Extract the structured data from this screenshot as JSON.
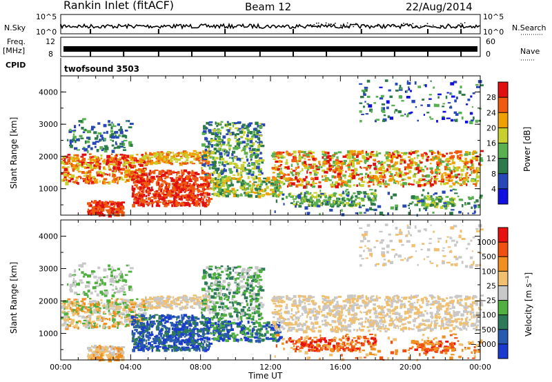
{
  "header": {
    "station": "Rankin Inlet (fitACF)",
    "beam": "Beam 12",
    "date": "22/Aug/2014"
  },
  "top_panels": {
    "nsky_label": "N.Sky",
    "nsky_tick_hi": "10^5",
    "nsky_tick_lo": "10^0",
    "nsearch_label": "N.Search",
    "nsearch_tick_hi": "10^5",
    "nsearch_tick_lo": "10^0",
    "freq_label": "Freq.",
    "freq_unit": "[MHz]",
    "freq_tick_hi": "12",
    "freq_tick_lo": "8",
    "nave_label": "Nave",
    "nave_tick_hi": "60",
    "nave_tick_lo": "0",
    "cpid_label": "CPID",
    "cpid_value": "twofsound 3503"
  },
  "chart_data": [
    {
      "type": "heatmap",
      "title": "Power",
      "ylabel": "Slant Range [km]",
      "xlabel": "Time UT",
      "xlim": [
        0,
        24
      ],
      "ylim": [
        180,
        4500
      ],
      "x_ticks": [
        "00:00",
        "04:00",
        "08:00",
        "12:00",
        "16:00",
        "20:00",
        "00:00"
      ],
      "y_ticks": [
        1000,
        2000,
        3000,
        4000
      ],
      "colorbar": {
        "label": "Power [dB]",
        "ticks": [
          4,
          8,
          12,
          16,
          20,
          24,
          28
        ],
        "colors": [
          "#1010e0",
          "#2848b8",
          "#2c7a4a",
          "#58b050",
          "#c8d030",
          "#f0a000",
          "#f05a10",
          "#e01010"
        ]
      }
    },
    {
      "type": "heatmap",
      "title": "Velocity",
      "ylabel": "Slant Range [km]",
      "xlabel": "Time UT",
      "xlim": [
        0,
        24
      ],
      "ylim": [
        180,
        4500
      ],
      "x_ticks": [
        "00:00",
        "04:00",
        "08:00",
        "12:00",
        "16:00",
        "20:00",
        "00:00"
      ],
      "y_ticks": [
        1000,
        2000,
        3000,
        4000
      ],
      "colorbar": {
        "label": "Velocity [m s⁻¹]",
        "ticks": [
          "1000",
          "500",
          "100",
          "25",
          "−25",
          "−100",
          "−500",
          "−1000"
        ],
        "colors": [
          "#1a3ad0",
          "#2a5ab0",
          "#2c7a5a",
          "#50b040",
          "#c8c8c8",
          "#f0c070",
          "#f09020",
          "#f05010",
          "#e81010"
        ]
      }
    }
  ]
}
